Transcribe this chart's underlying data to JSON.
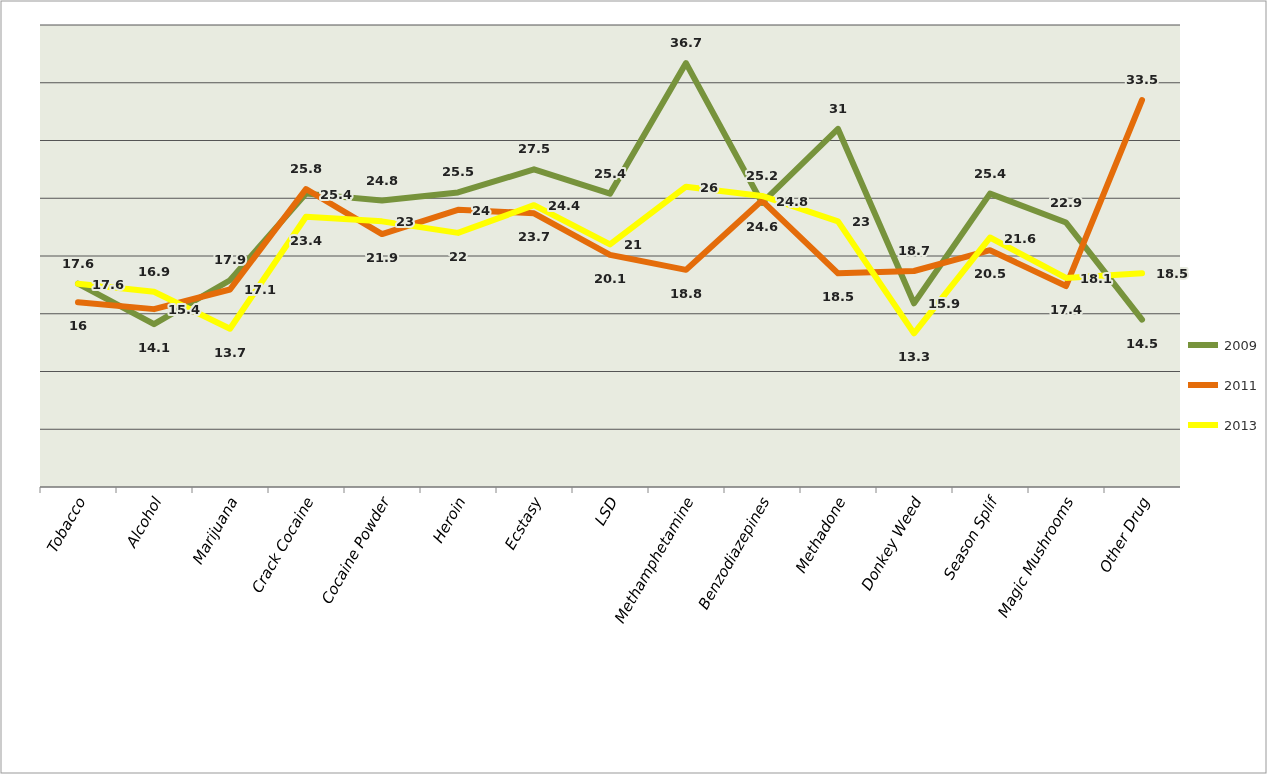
{
  "chart_data": {
    "type": "line",
    "categories": [
      "Tobacco",
      "Alcohol",
      "Marijuana",
      "Crack Cocaine",
      "Cocaine Powder",
      "Heroin",
      "Ecstasy",
      "LSD",
      "Methamphetamine",
      "Benzodiazepines",
      "Methadone",
      "Donkey Weed",
      "Season Splif",
      "Magic Mushrooms",
      "Other Drug"
    ],
    "series": [
      {
        "name": "2009",
        "color": "#77933c",
        "values": [
          17.6,
          14.1,
          17.9,
          25.4,
          24.8,
          25.5,
          27.5,
          25.4,
          36.7,
          24.6,
          31,
          15.9,
          25.4,
          22.9,
          14.5
        ]
      },
      {
        "name": "2011",
        "color": "#e46c0a",
        "values": [
          16,
          15.4,
          17.1,
          25.8,
          21.9,
          24,
          23.7,
          20.1,
          18.8,
          24.8,
          18.5,
          18.7,
          20.5,
          17.4,
          33.5
        ]
      },
      {
        "name": "2013",
        "color": "#ffff00",
        "values": [
          17.6,
          16.9,
          13.7,
          23.4,
          23,
          22,
          24.4,
          21,
          26,
          25.2,
          23,
          13.3,
          21.6,
          18.1,
          18.5
        ]
      }
    ],
    "ylim": [
      0,
      40
    ],
    "yticks": [
      {
        "value": 0,
        "label": null
      },
      {
        "value": 5,
        "label": null
      },
      {
        "value": 10,
        "label": null
      },
      {
        "value": 15,
        "label": null
      },
      {
        "value": 20,
        "label": null
      },
      {
        "value": 25,
        "label": null
      },
      {
        "value": 30,
        "label": null
      },
      {
        "value": 35,
        "label": null
      },
      {
        "value": 40,
        "label": null
      }
    ],
    "tick_labels": "x",
    "grid": "y",
    "legend": "right",
    "data_labels": true,
    "marker": "none",
    "line_style": "solid"
  }
}
